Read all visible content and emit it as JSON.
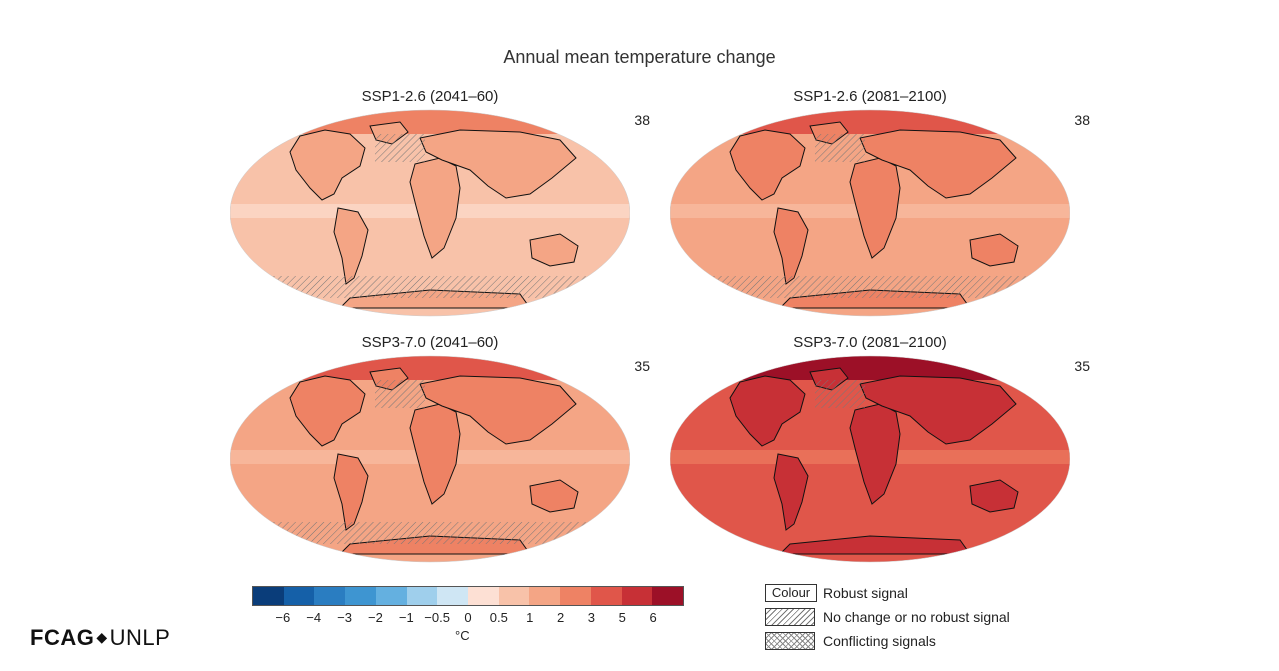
{
  "title": "Annual mean temperature change",
  "panels": [
    {
      "title": "SSP1-2.6 (2041–60)",
      "count": "38",
      "level": 1
    },
    {
      "title": "SSP1-2.6 (2081–2100)",
      "count": "38",
      "level": 2
    },
    {
      "title": "SSP3-7.0 (2041–60)",
      "count": "35",
      "level": 2
    },
    {
      "title": "SSP3-7.0 (2081–2100)",
      "count": "35",
      "level": 4
    }
  ],
  "colorbar": {
    "colors": [
      "#0a3d7a",
      "#1560a8",
      "#2a7dc1",
      "#3e95d1",
      "#64b0e0",
      "#9fcfec",
      "#cfe6f4",
      "#fde0d4",
      "#f8c2a9",
      "#f4a585",
      "#ee8264",
      "#e0564a",
      "#c73036",
      "#9c1027"
    ],
    "ticks": [
      "−6",
      "−4",
      "−3",
      "−2",
      "−1",
      "−0.5",
      "0",
      "0.5",
      "1",
      "2",
      "3",
      "5",
      "6"
    ],
    "unit": "°C"
  },
  "legend": {
    "colour_box_label": "Colour",
    "items": [
      {
        "label": "Robust signal"
      },
      {
        "label": "No change or no robust signal"
      },
      {
        "label": "Conflicting signals"
      }
    ]
  },
  "logo": {
    "left": "FCAG",
    "right": "UNLP"
  }
}
